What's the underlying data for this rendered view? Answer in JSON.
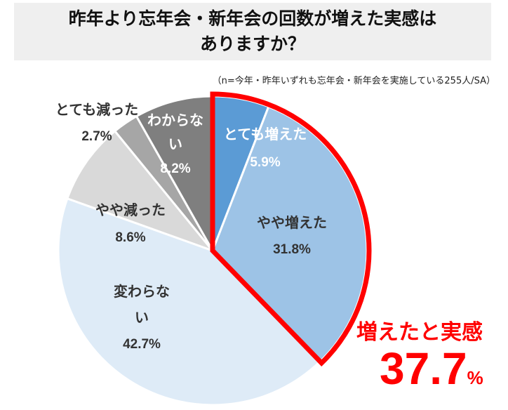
{
  "title": {
    "line1": "昨年より忘年会・新年会の回数が増えた実感は",
    "line2": "ありますか？"
  },
  "note": "（n=今年・昨年いずれも忘年会・新年会を実施している255人/SA）",
  "highlight": {
    "label": "増えたと実感",
    "value": "37.7",
    "unit": "%",
    "color": "#ff0000"
  },
  "chart_data": {
    "type": "pie",
    "start": "12 o'clock",
    "direction": "clockwise",
    "slices": [
      {
        "name": "とても増えた",
        "value": 5.9,
        "label": "5.9%",
        "color": "#5b9bd5"
      },
      {
        "name": "やや増えた",
        "value": 31.8,
        "label": "31.8%",
        "color": "#9dc3e6"
      },
      {
        "name": "変わらない",
        "value": 42.7,
        "label": "42.7%",
        "color": "#deebf7"
      },
      {
        "name": "やや減った",
        "value": 8.6,
        "label": "8.6%",
        "color": "#d9d9d9"
      },
      {
        "name": "とても減った",
        "value": 2.7,
        "label": "2.7%",
        "color": "#a6a6a6"
      },
      {
        "name": "わからない",
        "value": 8.2,
        "label": "8.2%",
        "color": "#7f7f7f"
      }
    ]
  }
}
